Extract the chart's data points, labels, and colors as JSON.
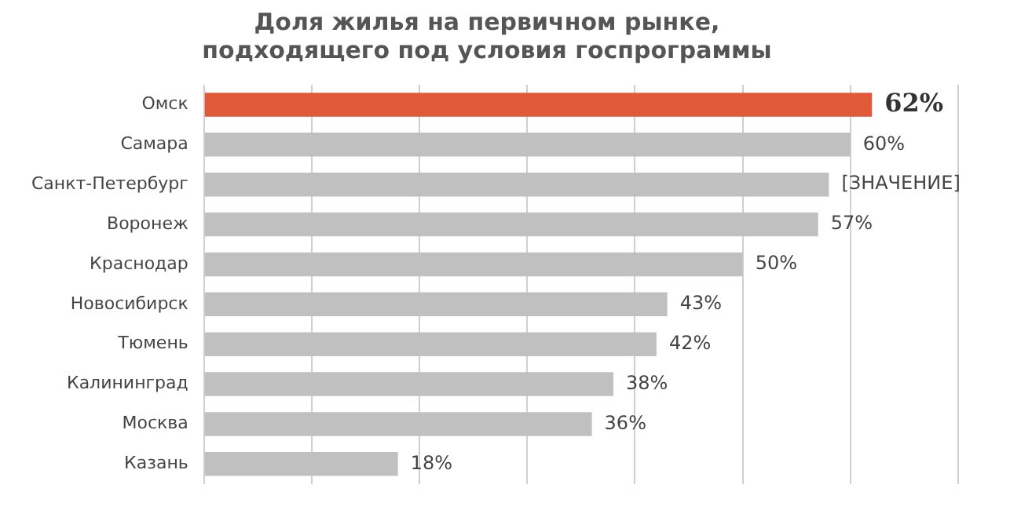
{
  "chart_data": {
    "type": "bar",
    "orientation": "horizontal",
    "title": "Доля жилья на первичном рынке,\nподходящего под условия госпрограммы",
    "categories": [
      "Омск",
      "Самара",
      "Санкт-Петербург",
      "Воронеж",
      "Краснодар",
      "Новосибирск",
      "Тюмень",
      "Калининград",
      "Москва",
      "Казань"
    ],
    "values": [
      62,
      60,
      58,
      57,
      50,
      43,
      42,
      38,
      36,
      18
    ],
    "value_labels": [
      "62%",
      "60%",
      "[ЗНАЧЕНИЕ]",
      "57%",
      "50%",
      "43%",
      "42%",
      "38%",
      "36%",
      "18%"
    ],
    "colors": [
      "#e05a3a",
      "#c0c0c0",
      "#c0c0c0",
      "#c0c0c0",
      "#c0c0c0",
      "#c0c0c0",
      "#c0c0c0",
      "#c0c0c0",
      "#c0c0c0",
      "#c0c0c0"
    ],
    "xlim": [
      0,
      70
    ],
    "xticks": [
      {
        "value": 0,
        "label": null
      },
      {
        "value": 10,
        "label": null
      },
      {
        "value": 20,
        "label": null
      },
      {
        "value": 30,
        "label": null
      },
      {
        "value": 40,
        "label": null
      },
      {
        "value": 50,
        "label": null
      },
      {
        "value": 60,
        "label": null
      },
      {
        "value": 70,
        "label": null
      }
    ],
    "tick_labels": "y",
    "grid": "x",
    "legend": false
  }
}
